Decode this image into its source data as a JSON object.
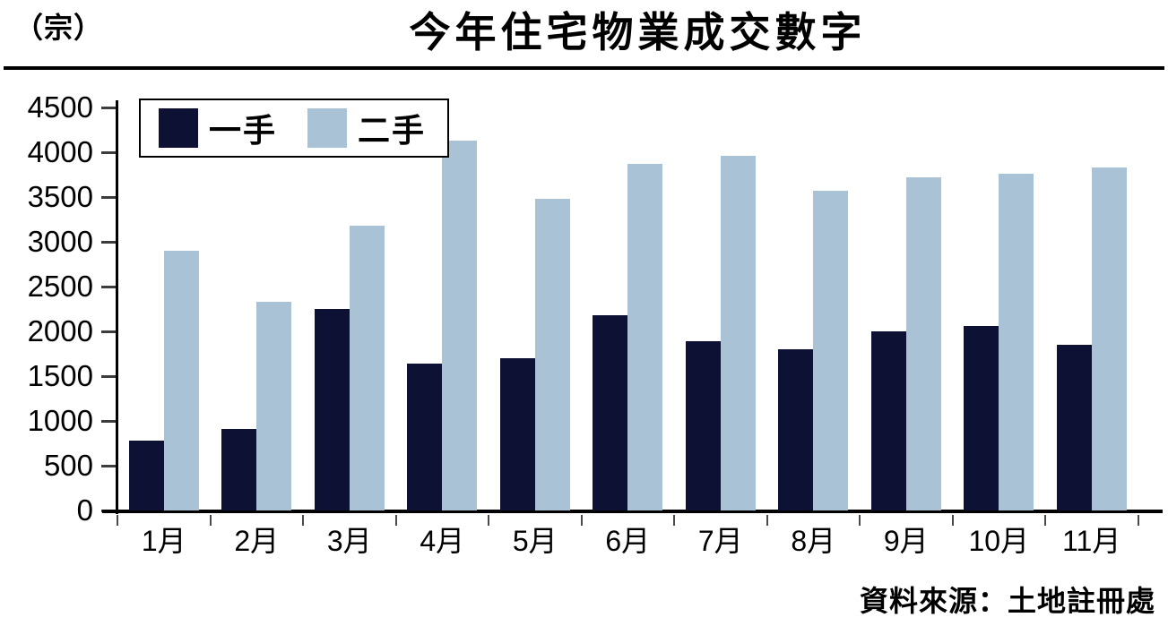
{
  "page": {
    "unit_label": "（宗）",
    "title": "今年住宅物業成交數字",
    "source": "資料來源：土地註冊處"
  },
  "chart_data": {
    "type": "bar",
    "title": "今年住宅物業成交數字",
    "unit": "宗",
    "categories": [
      "1月",
      "2月",
      "3月",
      "4月",
      "5月",
      "6月",
      "7月",
      "8月",
      "9月",
      "10月",
      "11月"
    ],
    "series": [
      {
        "name": "一手",
        "color": "#0d1134",
        "values": [
          780,
          910,
          2250,
          1640,
          1700,
          2180,
          1890,
          1800,
          2000,
          2060,
          1850
        ]
      },
      {
        "name": "二手",
        "color": "#aac2d5",
        "values": [
          2900,
          2330,
          3180,
          4130,
          3480,
          3870,
          3960,
          3570,
          3720,
          3760,
          3830
        ]
      }
    ],
    "ylim": [
      0,
      4500
    ],
    "yticks": [
      0,
      500,
      1000,
      1500,
      2000,
      2500,
      3000,
      3500,
      4000,
      4500
    ],
    "grid": false,
    "legend_position": "top-left",
    "source": "資料來源：土地註冊處"
  }
}
